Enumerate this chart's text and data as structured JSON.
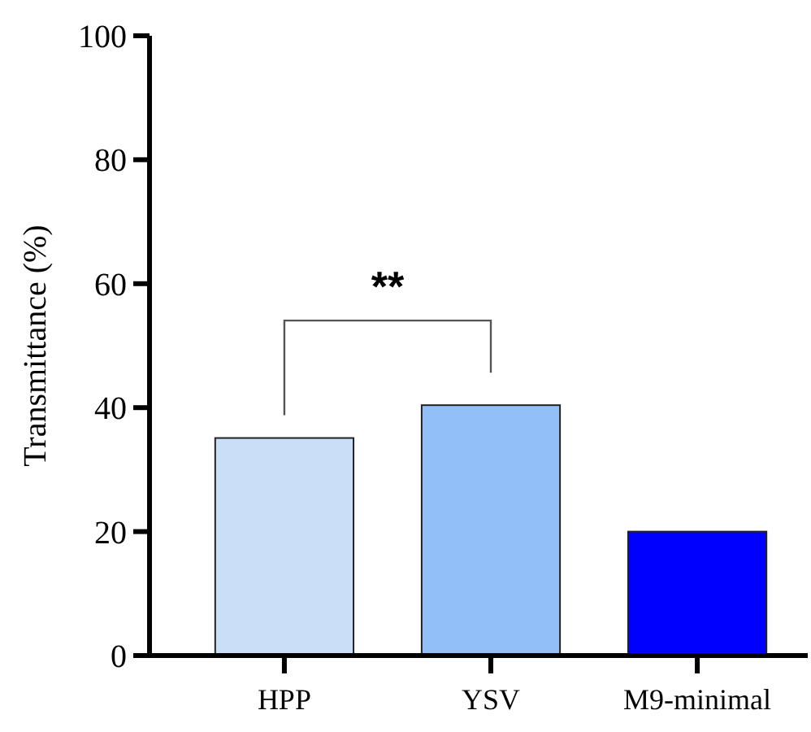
{
  "chart_data": {
    "type": "bar",
    "ylabel": "Transmittance (%)",
    "categories": [
      "HPP",
      "YSV",
      "M9-minimal"
    ],
    "values": [
      35.1,
      40.4,
      20.0
    ],
    "colors": [
      "#cadef7",
      "#93bff8",
      "#0000ff"
    ],
    "ylim": [
      0,
      100
    ],
    "yticks": [
      0,
      20,
      40,
      60,
      80,
      100
    ],
    "grid": false,
    "annotations": [
      "**"
    ]
  }
}
